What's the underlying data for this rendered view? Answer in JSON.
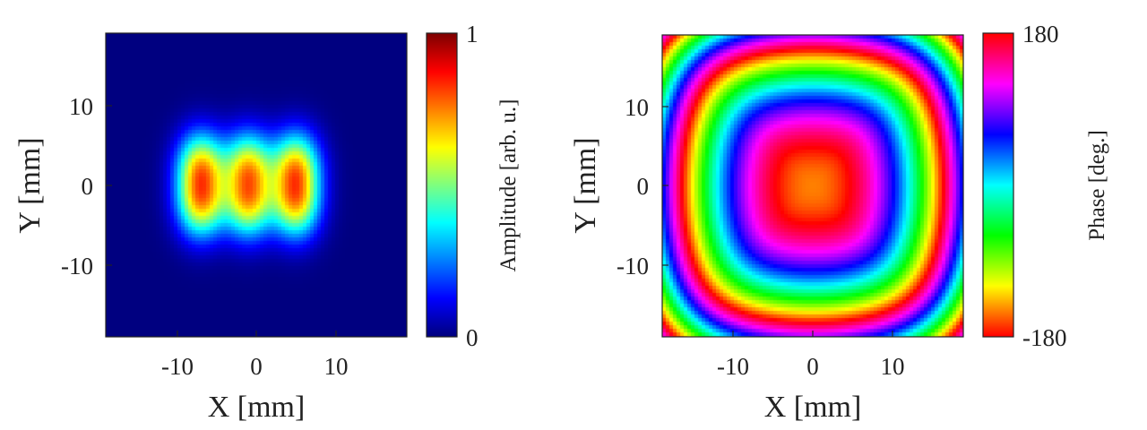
{
  "chart_data": [
    {
      "type": "heatmap",
      "panel": "amplitude",
      "xlabel": "X [mm]",
      "ylabel": "Y [mm]",
      "xlim": [
        -19,
        19
      ],
      "ylim": [
        -19,
        19
      ],
      "xticks": [
        -10,
        0,
        10
      ],
      "yticks": [
        10,
        0,
        -10
      ],
      "colormap": "jet",
      "colorbar": {
        "label": "Amplitude [arb. u.]",
        "min": 0,
        "max": 1,
        "tick_labels": [
          "1",
          "0"
        ]
      },
      "features": {
        "peaks": [
          {
            "x": -7,
            "y": 0,
            "value": 1.0
          },
          {
            "x": -1,
            "y": 0,
            "value": 0.95
          },
          {
            "x": 5,
            "y": 0,
            "value": 1.0
          }
        ],
        "peak_sigma_x_mm": 4.8,
        "peak_sigma_y_mm": 8.5,
        "background": 0.0
      }
    },
    {
      "type": "heatmap",
      "panel": "phase",
      "xlabel": "X [mm]",
      "ylabel": "Y [mm]",
      "xlim": [
        -19,
        19
      ],
      "ylim": [
        -19,
        19
      ],
      "xticks": [
        -10,
        0,
        10
      ],
      "yticks": [
        10,
        0,
        -10
      ],
      "colormap": "hsv",
      "colorbar": {
        "label": "Phase [deg.]",
        "min": -180,
        "max": 180,
        "tick_labels": [
          "180",
          "-180"
        ]
      },
      "features": {
        "center": {
          "x": 0,
          "y": 0,
          "phase_deg": 0
        },
        "wrap_period_deg": 360,
        "radial_profile": "squarish concentric phase wraps"
      }
    }
  ],
  "colors": {
    "axis": "#222222",
    "background": "#ffffff"
  }
}
